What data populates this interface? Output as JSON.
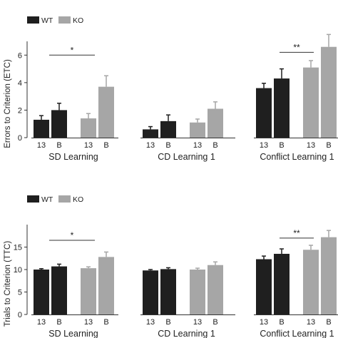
{
  "legend": [
    {
      "label": "WT",
      "color": "#1f1f1f"
    },
    {
      "label": "KO",
      "color": "#a6a6a6"
    }
  ],
  "chart_data": [
    {
      "type": "bar",
      "ylabel": "Errors to Criterion (ETC)",
      "ylim": [
        0,
        7
      ],
      "yticks": [
        "0",
        "2",
        "4",
        "6"
      ],
      "tick_labels": [
        "13",
        "B",
        "13",
        "B"
      ],
      "groups": [
        {
          "name": "SD Learning",
          "values": [
            1.3,
            2.0,
            1.4,
            3.7
          ],
          "errors": [
            0.3,
            0.5,
            0.35,
            0.8
          ],
          "significance": {
            "label": "*",
            "y": 6.0
          }
        },
        {
          "name": "CD Learning 1",
          "values": [
            0.6,
            1.2,
            1.1,
            2.1
          ],
          "errors": [
            0.2,
            0.45,
            0.25,
            0.5
          ]
        },
        {
          "name": "Conflict Learning 1",
          "values": [
            3.6,
            4.3,
            5.1,
            6.6
          ],
          "errors": [
            0.35,
            0.7,
            0.5,
            0.9
          ],
          "significance": {
            "label": "**",
            "y": 6.2
          }
        }
      ]
    },
    {
      "type": "bar",
      "ylabel": "Trials to Criterion (TTC)",
      "ylim": [
        0,
        20
      ],
      "yticks": [
        "0",
        "5",
        "10",
        "15"
      ],
      "tick_labels": [
        "13",
        "B",
        "13",
        "B"
      ],
      "groups": [
        {
          "name": "SD Learning",
          "values": [
            10.0,
            10.7,
            10.3,
            12.8
          ],
          "errors": [
            0.2,
            0.5,
            0.3,
            1.1
          ],
          "significance": {
            "label": "*",
            "y": 16.5
          }
        },
        {
          "name": "CD Learning 1",
          "values": [
            9.8,
            10.1,
            10.0,
            11.0
          ],
          "errors": [
            0.2,
            0.3,
            0.3,
            0.7
          ]
        },
        {
          "name": "Conflict Learning 1",
          "values": [
            12.3,
            13.5,
            14.4,
            17.2
          ],
          "errors": [
            0.7,
            1.1,
            1.0,
            1.5
          ],
          "significance": {
            "label": "**",
            "y": 17.0
          }
        }
      ]
    }
  ]
}
